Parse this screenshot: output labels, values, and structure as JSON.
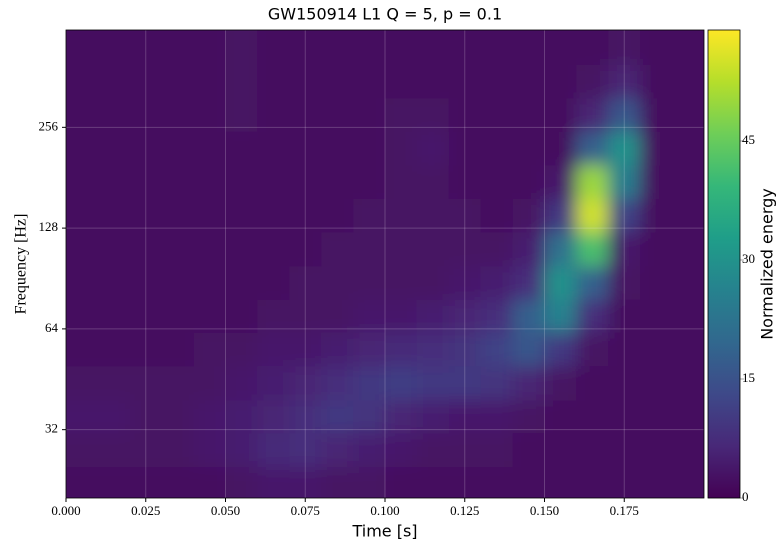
{
  "chart_data": {
    "type": "heatmap",
    "title": "GW150914 L1 Q = 5, p = 0.1",
    "x_label": "Time [s]",
    "y_label": "Frequency [Hz]",
    "colorbar_label": "Normalized energy",
    "colormap": "viridis",
    "y_log_base": 2,
    "grid": true,
    "xlim": [
      0,
      0.2
    ],
    "ylim": [
      20,
      500
    ],
    "clim": [
      0,
      59
    ],
    "xticks": [
      {
        "value": 0,
        "label": "0.000"
      },
      {
        "value": 0.025,
        "label": "0.025"
      },
      {
        "value": 0.05,
        "label": "0.050"
      },
      {
        "value": 0.075,
        "label": "0.075"
      },
      {
        "value": 0.1,
        "label": "0.100"
      },
      {
        "value": 0.125,
        "label": "0.125"
      },
      {
        "value": 0.15,
        "label": "0.150"
      },
      {
        "value": 0.175,
        "label": "0.175"
      }
    ],
    "yticks": [
      32,
      64,
      128,
      256
    ],
    "cticks": [
      0,
      15,
      30,
      45
    ],
    "x": [
      0.005,
      0.015,
      0.025,
      0.035,
      0.045,
      0.055,
      0.065,
      0.075,
      0.085,
      0.095,
      0.105,
      0.115,
      0.125,
      0.135,
      0.145,
      0.155,
      0.165,
      0.175,
      0.185,
      0.195
    ],
    "y": [
      22,
      28,
      35,
      44,
      56,
      70,
      88,
      111,
      140,
      176,
      222,
      279,
      352,
      443
    ],
    "z": [
      [
        2,
        2,
        2,
        2,
        2,
        3,
        4,
        4,
        3,
        3,
        2,
        2,
        2,
        2,
        2,
        2,
        2,
        2,
        2,
        2
      ],
      [
        3,
        3,
        3,
        3,
        4,
        5,
        7,
        8,
        6,
        5,
        4,
        3,
        3,
        3,
        2,
        2,
        2,
        2,
        2,
        2
      ],
      [
        4,
        4,
        3,
        3,
        4,
        5,
        6,
        8,
        10,
        9,
        6,
        5,
        4,
        4,
        3,
        2,
        2,
        2,
        2,
        2
      ],
      [
        3,
        3,
        3,
        3,
        3,
        4,
        5,
        6,
        8,
        10,
        11,
        10,
        10,
        9,
        6,
        3,
        2,
        2,
        2,
        2
      ],
      [
        2,
        2,
        2,
        2,
        3,
        3,
        4,
        4,
        5,
        6,
        7,
        8,
        9,
        12,
        16,
        10,
        3,
        2,
        2,
        2
      ],
      [
        2,
        2,
        2,
        2,
        2,
        2,
        3,
        3,
        3,
        4,
        4,
        5,
        6,
        8,
        18,
        26,
        8,
        2,
        2,
        2
      ],
      [
        2,
        2,
        2,
        2,
        2,
        2,
        2,
        3,
        3,
        3,
        3,
        3,
        4,
        5,
        8,
        30,
        18,
        3,
        2,
        2
      ],
      [
        2,
        2,
        2,
        2,
        2,
        2,
        2,
        2,
        3,
        3,
        3,
        3,
        3,
        3,
        5,
        22,
        42,
        4,
        2,
        2
      ],
      [
        2,
        2,
        2,
        2,
        2,
        2,
        2,
        2,
        2,
        3,
        3,
        3,
        3,
        2,
        3,
        10,
        55,
        12,
        2,
        2
      ],
      [
        2,
        2,
        2,
        2,
        2,
        2,
        2,
        2,
        2,
        2,
        3,
        3,
        2,
        2,
        2,
        4,
        50,
        25,
        2,
        2
      ],
      [
        2,
        2,
        2,
        2,
        2,
        2,
        2,
        2,
        2,
        2,
        3,
        4,
        2,
        2,
        2,
        2,
        18,
        30,
        2,
        2
      ],
      [
        2,
        2,
        2,
        2,
        2,
        3,
        2,
        2,
        2,
        2,
        3,
        3,
        2,
        2,
        2,
        2,
        6,
        16,
        2,
        2
      ],
      [
        2,
        2,
        2,
        2,
        2,
        3,
        2,
        2,
        2,
        2,
        2,
        2,
        2,
        2,
        2,
        2,
        3,
        6,
        2,
        2
      ],
      [
        2,
        2,
        2,
        2,
        2,
        3,
        2,
        2,
        2,
        2,
        2,
        2,
        2,
        2,
        2,
        2,
        2,
        3,
        2,
        2
      ]
    ]
  }
}
